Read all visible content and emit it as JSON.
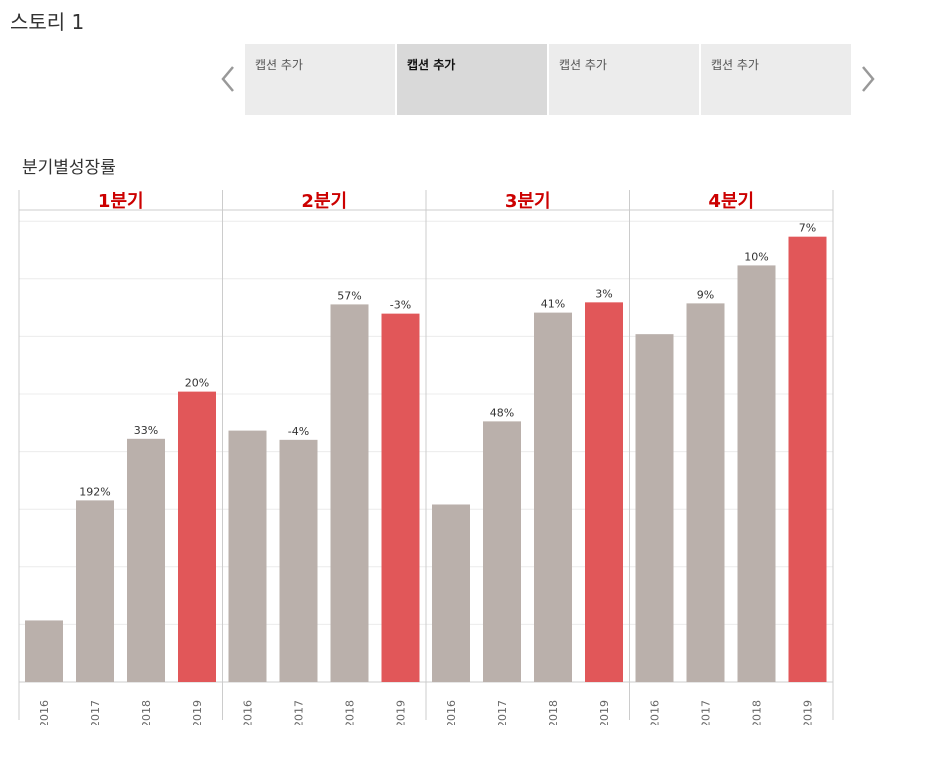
{
  "story": {
    "title": "스토리 1",
    "captions": [
      {
        "label": "캡션 추가",
        "active": false
      },
      {
        "label": "캡션 추가",
        "active": true
      },
      {
        "label": "캡션 추가",
        "active": false
      },
      {
        "label": "캡션 추가",
        "active": false
      }
    ],
    "prev_icon": "chevron-left-icon",
    "next_icon": "chevron-right-icon"
  },
  "sheet": {
    "title": "분기별성장률"
  },
  "colors": {
    "header_text": "#cc0000",
    "bar_default": "#bab0ab",
    "bar_highlight": "#e15759",
    "grid": "#ececec",
    "divider": "#cccccc"
  },
  "chart_data": {
    "type": "bar",
    "title": "분기별성장률",
    "panels": [
      "1분기",
      "2분기",
      "3분기",
      "4분기"
    ],
    "categories": [
      "2016",
      "2017",
      "2018",
      "2019"
    ],
    "highlight_category": "2019",
    "values": [
      [
        60,
        177,
        237,
        283
      ],
      [
        245,
        236,
        368,
        359
      ],
      [
        173,
        254,
        360,
        370
      ],
      [
        339,
        369,
        406,
        434
      ]
    ],
    "labels": [
      [
        "",
        "192%",
        "33%",
        "20%"
      ],
      [
        "",
        "-4%",
        "57%",
        "-3%"
      ],
      [
        "",
        "48%",
        "41%",
        "3%"
      ],
      [
        "",
        "9%",
        "10%",
        "7%"
      ]
    ],
    "ylim": [
      0,
      460
    ],
    "xlabel": "",
    "ylabel": "",
    "grid": true,
    "y_axis_labels": false
  }
}
